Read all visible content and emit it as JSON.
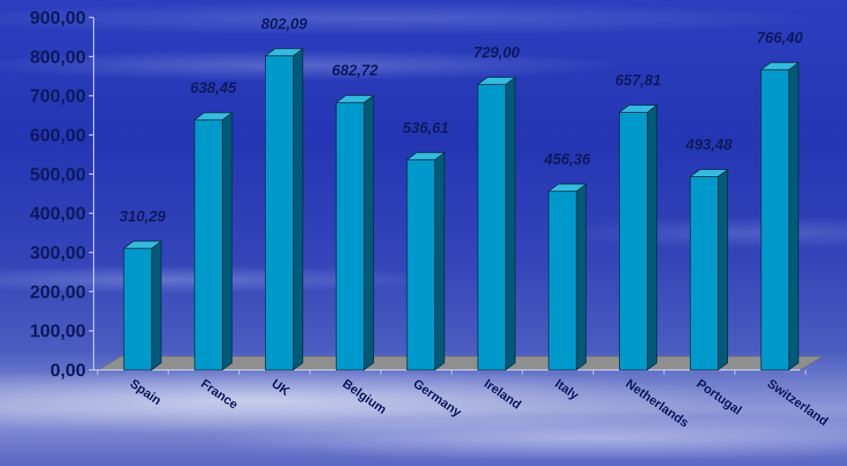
{
  "chart_data": {
    "type": "bar",
    "categories": [
      "Spain",
      "France",
      "UK",
      "Belgium",
      "Germany",
      "Ireland",
      "Italy",
      "Netherlands",
      "Portugal",
      "Switzerland"
    ],
    "values": [
      310.29,
      638.45,
      802.09,
      682.72,
      536.61,
      729.0,
      456.36,
      657.81,
      493.48,
      766.4
    ],
    "data_labels": [
      "310,29",
      "638,45",
      "802,09",
      "682,72",
      "536,61",
      "729,00",
      "456,36",
      "657,81",
      "493,48",
      "766,40"
    ],
    "y_ticks": [
      "0,00",
      "100,00",
      "200,00",
      "300,00",
      "400,00",
      "500,00",
      "600,00",
      "700,00",
      "800,00",
      "900,00"
    ],
    "ylim": [
      0,
      900
    ],
    "title": "",
    "xlabel": "",
    "ylabel": "",
    "grid": false,
    "legend": "none",
    "style": "3d-columns"
  },
  "colors": {
    "bar_front": "#0099cc",
    "bar_side": "#005a78",
    "bar_top": "#33bbe0",
    "floor": "#8f8f8f",
    "tick_label": "#0d1a5e",
    "data_label": "#0d1a5e"
  }
}
